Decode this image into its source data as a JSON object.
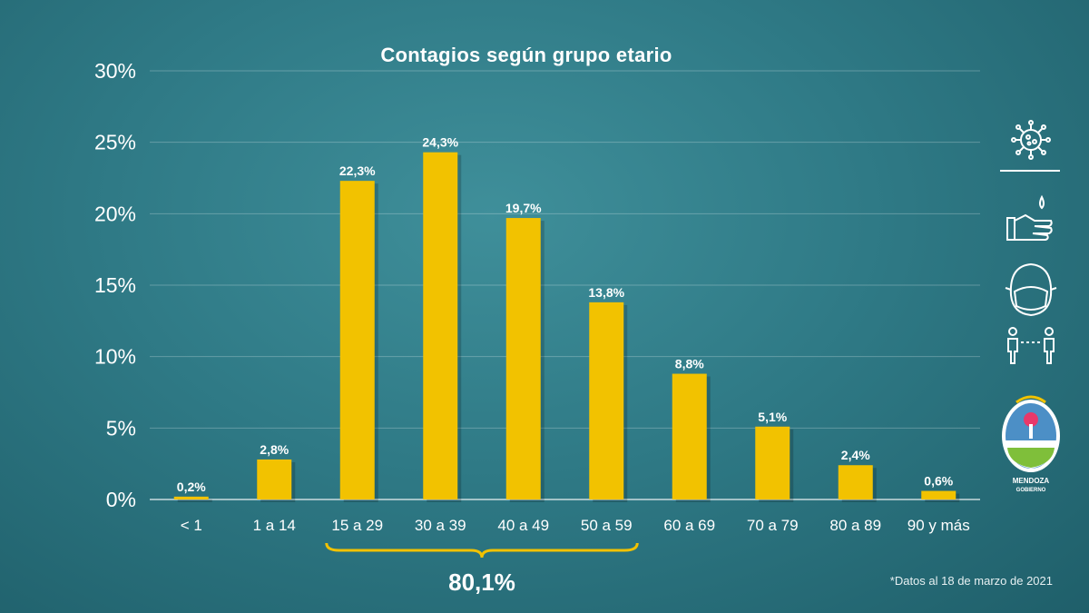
{
  "chart_data": {
    "type": "bar",
    "title": "Contagios según grupo etario",
    "categories": [
      "< 1",
      "1 a 14",
      "15 a 29",
      "30 a 39",
      "40 a 49",
      "50 a 59",
      "60 a 69",
      "70 a 79",
      "80 a 89",
      "90 y más"
    ],
    "values": [
      0.2,
      2.8,
      22.3,
      24.3,
      19.7,
      13.8,
      8.8,
      5.1,
      2.4,
      0.6
    ],
    "value_labels": [
      "0,2%",
      "2,8%",
      "22,3%",
      "24,3%",
      "19,7%",
      "13,8%",
      "8,8%",
      "5,1%",
      "2,4%",
      "0,6%"
    ],
    "ylim": [
      0,
      30
    ],
    "yticks": [
      0,
      5,
      10,
      15,
      20,
      25,
      30
    ],
    "ytick_labels": [
      "0%",
      "5%",
      "10%",
      "15%",
      "20%",
      "25%",
      "30%"
    ],
    "grid": true,
    "bar_color": "#f2c200",
    "annotation": {
      "label": "80,1%",
      "from_category": "15 a 29",
      "to_category": "50 a 59"
    }
  },
  "footnote": "*Datos al 18 de marzo de 2021",
  "side_icons": [
    "virus-icon",
    "handwashing-icon",
    "face-mask-icon",
    "social-distance-icon"
  ],
  "logo": {
    "line1": "MENDOZA",
    "line2": "GOBIERNO"
  }
}
